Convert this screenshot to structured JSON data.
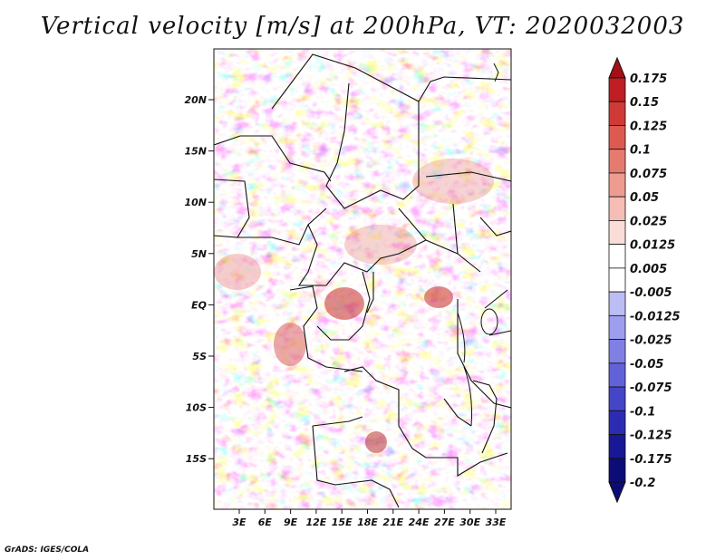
{
  "title": "Vertical velocity [m/s] at 200hPa, VT: 2020032003",
  "credit": "GrADS: IGES/COLA",
  "map": {
    "lat_labels": [
      "20N",
      "15N",
      "10N",
      "5N",
      "EQ",
      "5S",
      "10S",
      "15S"
    ],
    "lon_labels": [
      "3E",
      "6E",
      "9E",
      "12E",
      "15E",
      "18E",
      "21E",
      "24E",
      "27E",
      "30E",
      "33E"
    ]
  },
  "colorbar": {
    "labels": [
      "0.175",
      "0.15",
      "0.125",
      "0.1",
      "0.075",
      "0.05",
      "0.025",
      "0.0125",
      "0.005",
      "-0.005",
      "-0.0125",
      "-0.025",
      "-0.05",
      "-0.075",
      "-0.1",
      "-0.125",
      "-0.175",
      "-0.2"
    ],
    "colors": [
      "#a50f15",
      "#be1e24",
      "#cf3a36",
      "#dc5a50",
      "#e57b6e",
      "#ee9c90",
      "#f5bdb3",
      "#fbddd8",
      "#ffffff",
      "#dcdcfb",
      "#bdbdf5",
      "#9e9eee",
      "#8080e4",
      "#6262d8",
      "#4545c8",
      "#2c2cb3",
      "#181896",
      "#0c0c78"
    ]
  },
  "colors": {
    "positive": "#d33c3c",
    "negative": "#3838c8",
    "border": "#111111"
  }
}
